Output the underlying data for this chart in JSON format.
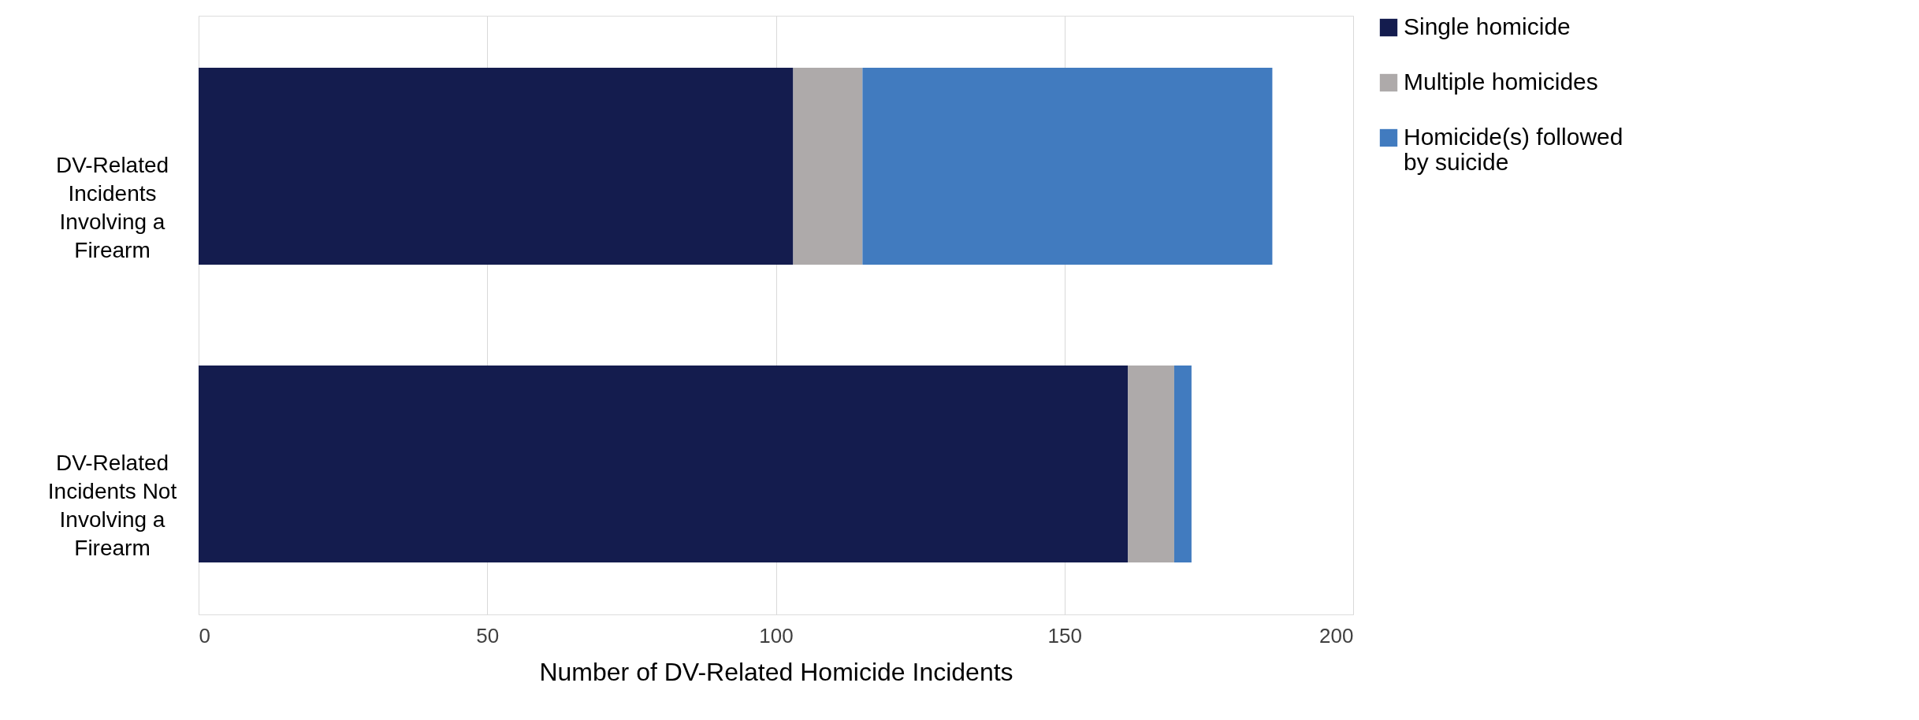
{
  "chart_data": {
    "type": "bar",
    "orientation": "horizontal",
    "stacked": true,
    "xlabel": "Number of DV-Related Homicide Incidents",
    "categories": [
      "DV-Related Incidents Involving a Firearm",
      "DV-Related Incidents Not Involving a Firearm"
    ],
    "series": [
      {
        "name": "Single homicide",
        "color": "#141c4e",
        "values": [
          103,
          161
        ]
      },
      {
        "name": "Multiple homicides",
        "color": "#aeaaaa",
        "values": [
          12,
          8
        ]
      },
      {
        "name": "Homicide(s) followed by suicide",
        "color": "#417bbf",
        "values": [
          71,
          3
        ]
      }
    ],
    "xlim": [
      0,
      200
    ],
    "xticks": [
      0,
      50,
      100,
      150,
      200
    ],
    "grid": "x",
    "legend": "right"
  }
}
